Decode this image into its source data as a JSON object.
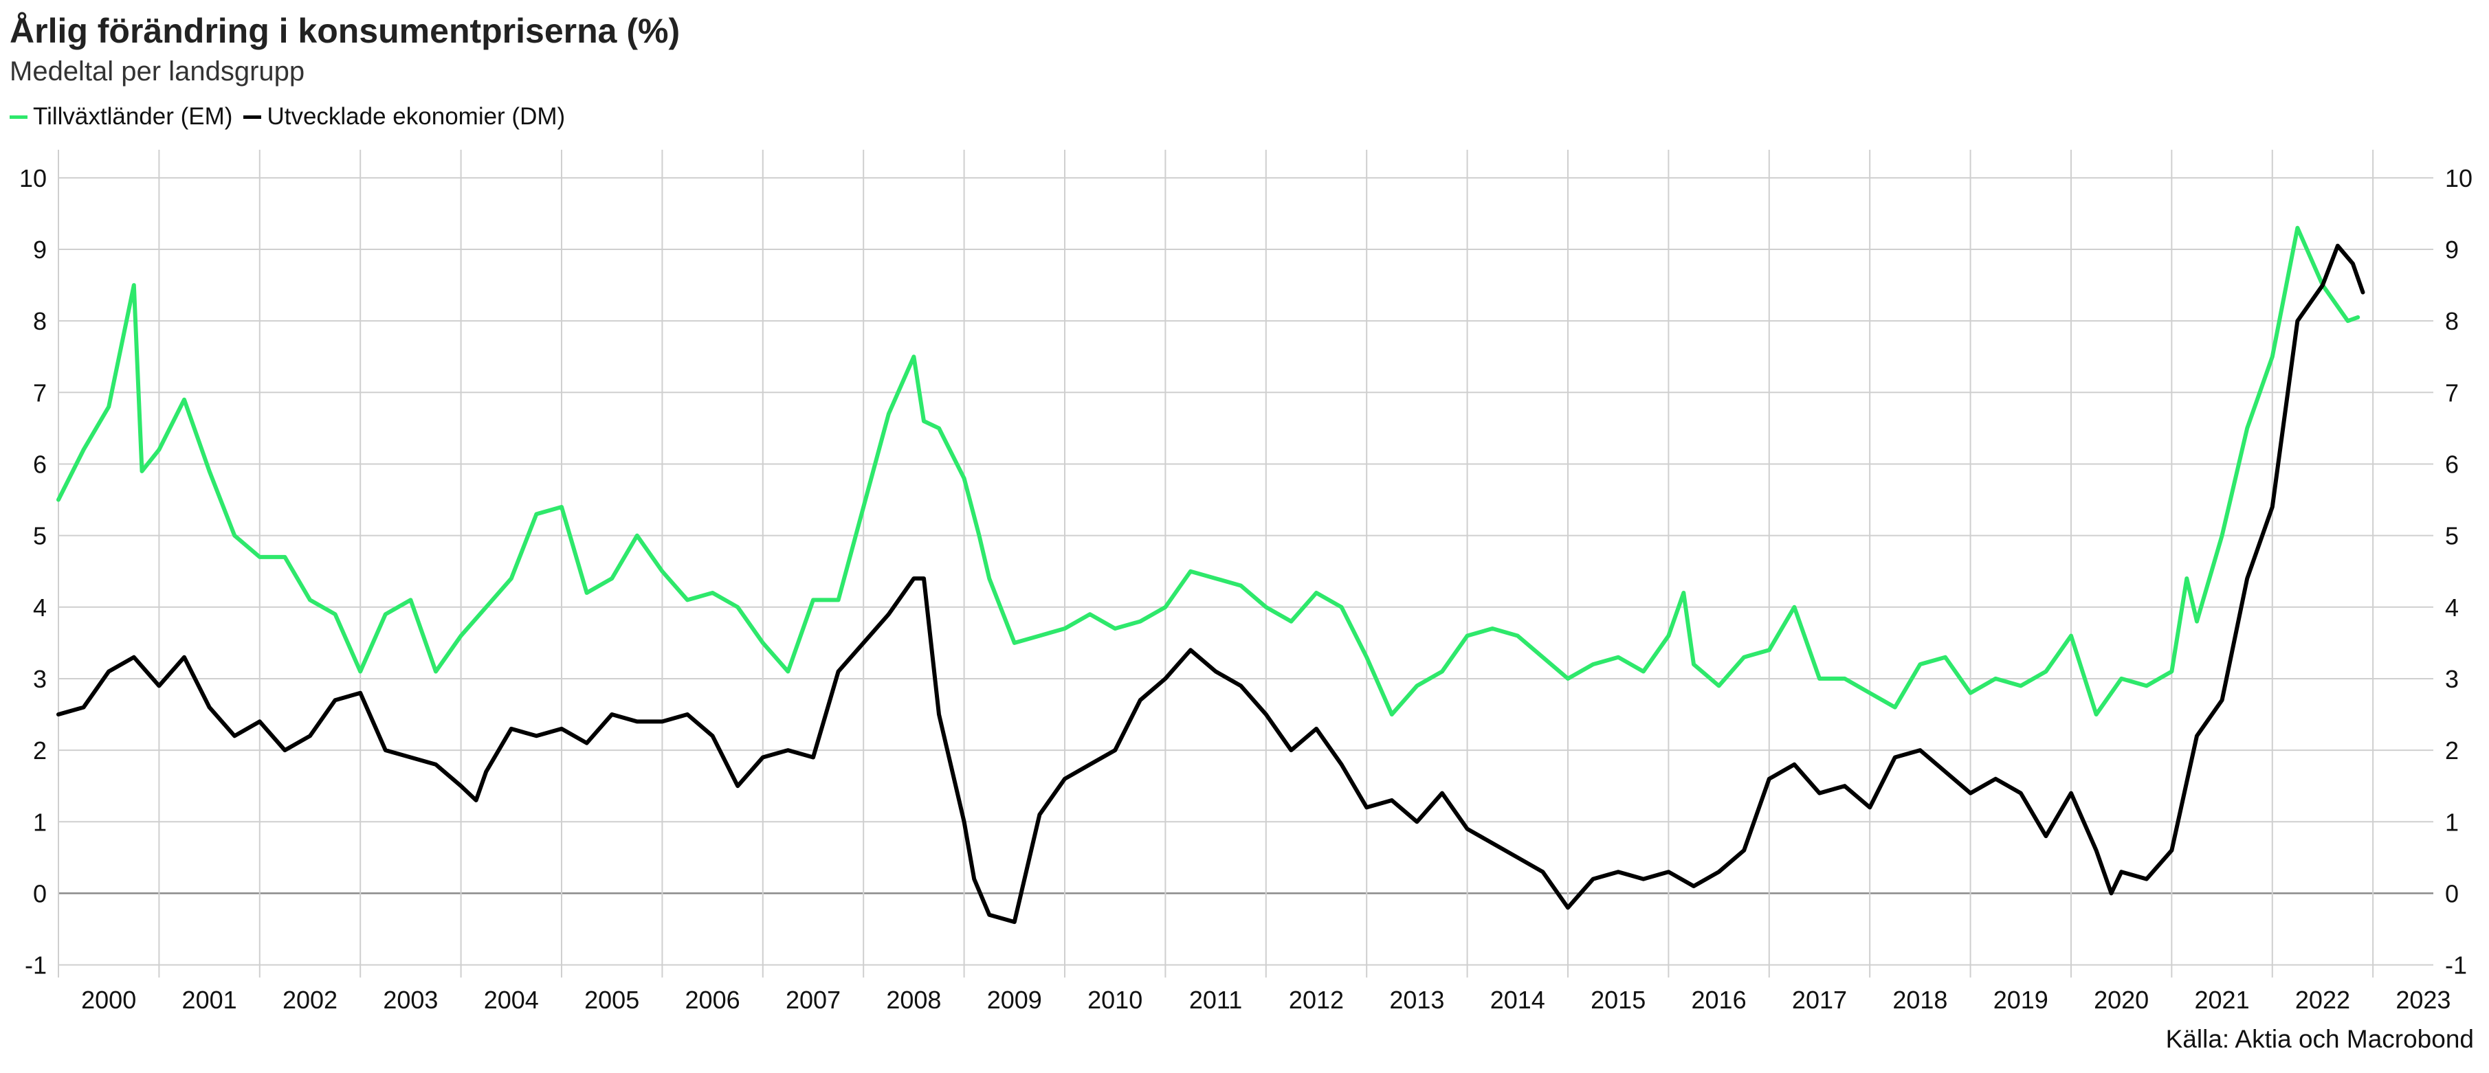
{
  "title": "Årlig förändring i konsumentpriserna (%)",
  "subtitle": "Medeltal per landsgrupp",
  "source": "Källa: Aktia och Macrobond",
  "legend": [
    {
      "label": "Tillväxtländer (EM)",
      "color": "#2ee86b"
    },
    {
      "label": "Utvecklade ekonomier (DM)",
      "color": "#000000"
    }
  ],
  "chart_data": {
    "type": "line",
    "title": "Årlig förändring i konsumentpriserna (%)",
    "subtitle": "Medeltal per landsgrupp",
    "x_ticks": [
      "2000",
      "2001",
      "2002",
      "2003",
      "2004",
      "2005",
      "2006",
      "2007",
      "2008",
      "2009",
      "2010",
      "2011",
      "2012",
      "2013",
      "2014",
      "2015",
      "2016",
      "2017",
      "2018",
      "2019",
      "2020",
      "2021",
      "2022",
      "2023"
    ],
    "y_ticks": [
      10,
      9,
      8,
      7,
      6,
      5,
      4,
      3,
      2,
      1,
      0,
      -1
    ],
    "xlim": [
      2000.0,
      2023.6
    ],
    "ylim": [
      -1.1,
      10.2
    ],
    "grid": true,
    "dual_y_axis_labels": true,
    "legend_position": "top-left",
    "series": [
      {
        "name": "Tillväxtländer (EM)",
        "color": "#2ee86b",
        "points": [
          [
            2000.0,
            5.5
          ],
          [
            2000.25,
            6.2
          ],
          [
            2000.5,
            6.8
          ],
          [
            2000.75,
            8.5
          ],
          [
            2000.83,
            5.9
          ],
          [
            2001.0,
            6.2
          ],
          [
            2001.25,
            6.9
          ],
          [
            2001.5,
            5.9
          ],
          [
            2001.75,
            5.0
          ],
          [
            2002.0,
            4.7
          ],
          [
            2002.25,
            4.7
          ],
          [
            2002.5,
            4.1
          ],
          [
            2002.75,
            3.9
          ],
          [
            2003.0,
            3.1
          ],
          [
            2003.25,
            3.9
          ],
          [
            2003.5,
            4.1
          ],
          [
            2003.75,
            3.1
          ],
          [
            2004.0,
            3.6
          ],
          [
            2004.25,
            4.0
          ],
          [
            2004.5,
            4.4
          ],
          [
            2004.75,
            5.3
          ],
          [
            2005.0,
            5.4
          ],
          [
            2005.25,
            4.2
          ],
          [
            2005.5,
            4.4
          ],
          [
            2005.75,
            5.0
          ],
          [
            2006.0,
            4.5
          ],
          [
            2006.25,
            4.1
          ],
          [
            2006.5,
            4.2
          ],
          [
            2006.75,
            4.0
          ],
          [
            2007.0,
            3.5
          ],
          [
            2007.25,
            3.1
          ],
          [
            2007.5,
            4.1
          ],
          [
            2007.75,
            4.1
          ],
          [
            2008.0,
            5.4
          ],
          [
            2008.25,
            6.7
          ],
          [
            2008.5,
            7.5
          ],
          [
            2008.6,
            6.6
          ],
          [
            2008.75,
            6.5
          ],
          [
            2009.0,
            5.8
          ],
          [
            2009.15,
            5.0
          ],
          [
            2009.25,
            4.4
          ],
          [
            2009.5,
            3.5
          ],
          [
            2009.75,
            3.6
          ],
          [
            2010.0,
            3.7
          ],
          [
            2010.25,
            3.9
          ],
          [
            2010.5,
            3.7
          ],
          [
            2010.75,
            3.8
          ],
          [
            2011.0,
            4.0
          ],
          [
            2011.25,
            4.5
          ],
          [
            2011.5,
            4.4
          ],
          [
            2011.75,
            4.3
          ],
          [
            2012.0,
            4.0
          ],
          [
            2012.25,
            3.8
          ],
          [
            2012.5,
            4.2
          ],
          [
            2012.75,
            4.0
          ],
          [
            2013.0,
            3.3
          ],
          [
            2013.25,
            2.5
          ],
          [
            2013.5,
            2.9
          ],
          [
            2013.75,
            3.1
          ],
          [
            2014.0,
            3.6
          ],
          [
            2014.25,
            3.7
          ],
          [
            2014.5,
            3.6
          ],
          [
            2014.75,
            3.3
          ],
          [
            2015.0,
            3.0
          ],
          [
            2015.25,
            3.2
          ],
          [
            2015.5,
            3.3
          ],
          [
            2015.75,
            3.1
          ],
          [
            2016.0,
            3.6
          ],
          [
            2016.15,
            4.2
          ],
          [
            2016.25,
            3.2
          ],
          [
            2016.5,
            2.9
          ],
          [
            2016.75,
            3.3
          ],
          [
            2017.0,
            3.4
          ],
          [
            2017.25,
            4.0
          ],
          [
            2017.5,
            3.0
          ],
          [
            2017.75,
            3.0
          ],
          [
            2018.0,
            2.8
          ],
          [
            2018.25,
            2.6
          ],
          [
            2018.5,
            3.2
          ],
          [
            2018.75,
            3.3
          ],
          [
            2019.0,
            2.8
          ],
          [
            2019.25,
            3.0
          ],
          [
            2019.5,
            2.9
          ],
          [
            2019.75,
            3.1
          ],
          [
            2020.0,
            3.6
          ],
          [
            2020.25,
            2.5
          ],
          [
            2020.5,
            3.0
          ],
          [
            2020.75,
            2.9
          ],
          [
            2021.0,
            3.1
          ],
          [
            2021.15,
            4.4
          ],
          [
            2021.25,
            3.8
          ],
          [
            2021.5,
            5.0
          ],
          [
            2021.75,
            6.5
          ],
          [
            2022.0,
            7.5
          ],
          [
            2022.25,
            9.3
          ],
          [
            2022.5,
            8.5
          ],
          [
            2022.75,
            8.0
          ],
          [
            2022.85,
            8.05
          ]
        ]
      },
      {
        "name": "Utvecklade ekonomier (DM)",
        "color": "#000000",
        "points": [
          [
            2000.0,
            2.5
          ],
          [
            2000.25,
            2.6
          ],
          [
            2000.5,
            3.1
          ],
          [
            2000.75,
            3.3
          ],
          [
            2001.0,
            2.9
          ],
          [
            2001.25,
            3.3
          ],
          [
            2001.5,
            2.6
          ],
          [
            2001.75,
            2.2
          ],
          [
            2002.0,
            2.4
          ],
          [
            2002.25,
            2.0
          ],
          [
            2002.5,
            2.2
          ],
          [
            2002.75,
            2.7
          ],
          [
            2003.0,
            2.8
          ],
          [
            2003.25,
            2.0
          ],
          [
            2003.5,
            1.9
          ],
          [
            2003.75,
            1.8
          ],
          [
            2004.0,
            1.5
          ],
          [
            2004.15,
            1.3
          ],
          [
            2004.25,
            1.7
          ],
          [
            2004.5,
            2.3
          ],
          [
            2004.75,
            2.2
          ],
          [
            2005.0,
            2.3
          ],
          [
            2005.25,
            2.1
          ],
          [
            2005.5,
            2.5
          ],
          [
            2005.75,
            2.4
          ],
          [
            2006.0,
            2.4
          ],
          [
            2006.25,
            2.5
          ],
          [
            2006.5,
            2.2
          ],
          [
            2006.75,
            1.5
          ],
          [
            2007.0,
            1.9
          ],
          [
            2007.25,
            2.0
          ],
          [
            2007.5,
            1.9
          ],
          [
            2007.75,
            3.1
          ],
          [
            2008.0,
            3.5
          ],
          [
            2008.25,
            3.9
          ],
          [
            2008.5,
            4.4
          ],
          [
            2008.6,
            4.4
          ],
          [
            2008.75,
            2.5
          ],
          [
            2009.0,
            1.0
          ],
          [
            2009.1,
            0.2
          ],
          [
            2009.25,
            -0.3
          ],
          [
            2009.5,
            -0.4
          ],
          [
            2009.75,
            1.1
          ],
          [
            2010.0,
            1.6
          ],
          [
            2010.25,
            1.8
          ],
          [
            2010.5,
            2.0
          ],
          [
            2010.75,
            2.7
          ],
          [
            2011.0,
            3.0
          ],
          [
            2011.25,
            3.4
          ],
          [
            2011.5,
            3.1
          ],
          [
            2011.75,
            2.9
          ],
          [
            2012.0,
            2.5
          ],
          [
            2012.25,
            2.0
          ],
          [
            2012.5,
            2.3
          ],
          [
            2012.75,
            1.8
          ],
          [
            2013.0,
            1.2
          ],
          [
            2013.25,
            1.3
          ],
          [
            2013.5,
            1.0
          ],
          [
            2013.75,
            1.4
          ],
          [
            2014.0,
            0.9
          ],
          [
            2014.25,
            0.7
          ],
          [
            2014.5,
            0.5
          ],
          [
            2014.75,
            0.3
          ],
          [
            2015.0,
            -0.2
          ],
          [
            2015.25,
            0.2
          ],
          [
            2015.5,
            0.3
          ],
          [
            2015.75,
            0.2
          ],
          [
            2016.0,
            0.3
          ],
          [
            2016.25,
            0.1
          ],
          [
            2016.5,
            0.3
          ],
          [
            2016.75,
            0.6
          ],
          [
            2017.0,
            1.6
          ],
          [
            2017.25,
            1.8
          ],
          [
            2017.5,
            1.4
          ],
          [
            2017.75,
            1.5
          ],
          [
            2018.0,
            1.2
          ],
          [
            2018.25,
            1.9
          ],
          [
            2018.5,
            2.0
          ],
          [
            2018.75,
            1.7
          ],
          [
            2019.0,
            1.4
          ],
          [
            2019.25,
            1.6
          ],
          [
            2019.5,
            1.4
          ],
          [
            2019.75,
            0.8
          ],
          [
            2020.0,
            1.4
          ],
          [
            2020.25,
            0.6
          ],
          [
            2020.4,
            0.0
          ],
          [
            2020.5,
            0.3
          ],
          [
            2020.75,
            0.2
          ],
          [
            2021.0,
            0.6
          ],
          [
            2021.25,
            2.2
          ],
          [
            2021.5,
            2.7
          ],
          [
            2021.75,
            4.4
          ],
          [
            2022.0,
            5.4
          ],
          [
            2022.25,
            8.0
          ],
          [
            2022.5,
            8.5
          ],
          [
            2022.65,
            9.05
          ],
          [
            2022.8,
            8.8
          ],
          [
            2022.9,
            8.4
          ]
        ]
      }
    ]
  }
}
